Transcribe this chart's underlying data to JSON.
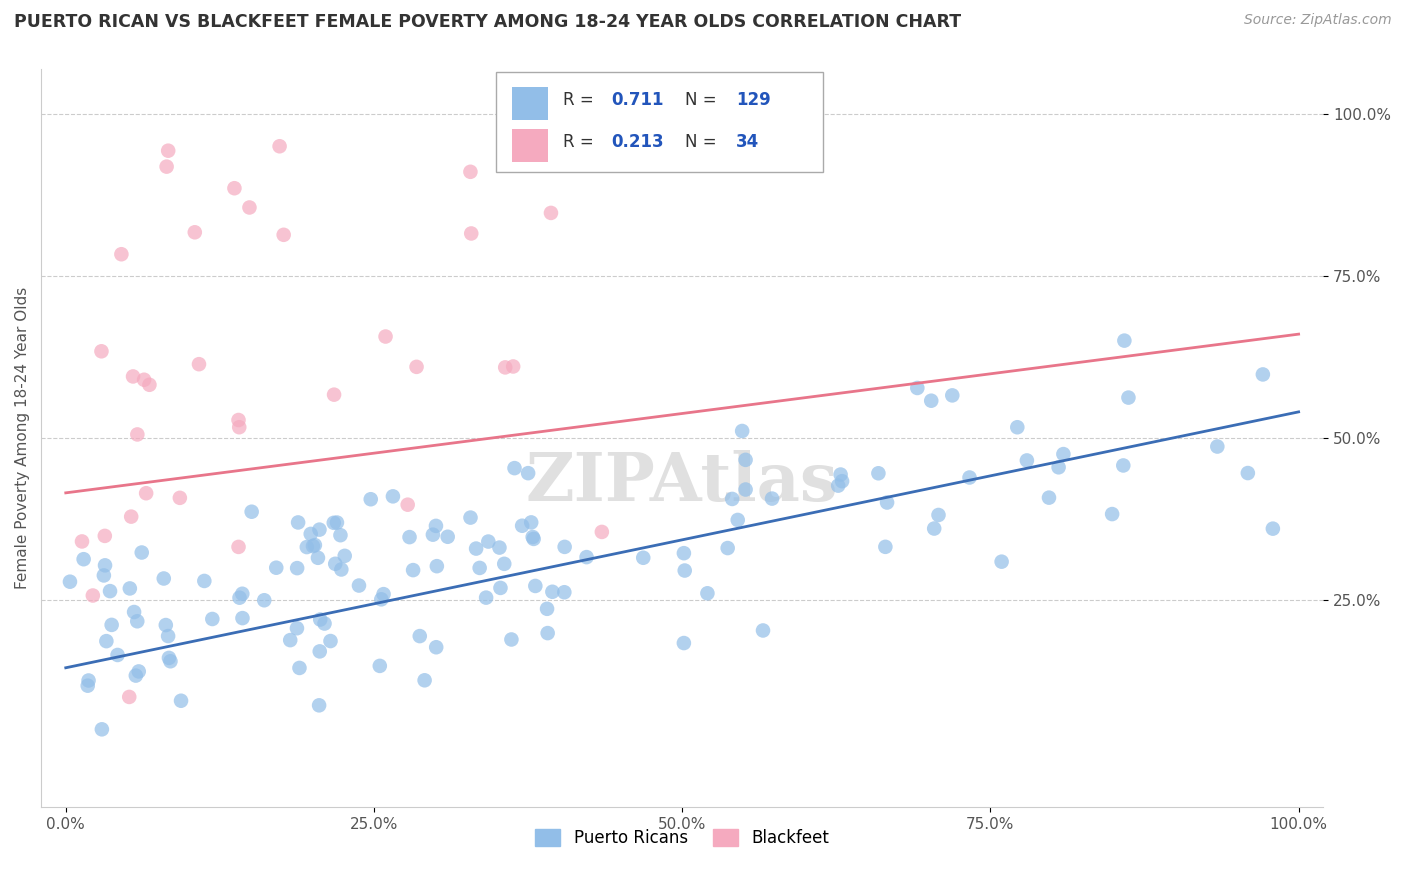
{
  "title": "PUERTO RICAN VS BLACKFEET FEMALE POVERTY AMONG 18-24 YEAR OLDS CORRELATION CHART",
  "source": "Source: ZipAtlas.com",
  "ylabel": "Female Poverty Among 18-24 Year Olds",
  "watermark": "ZIPAtlas",
  "xticks": [
    0.0,
    0.25,
    0.5,
    0.75,
    1.0
  ],
  "yticks": [
    0.25,
    0.5,
    0.75,
    1.0
  ],
  "xtick_labels": [
    "0.0%",
    "25.0%",
    "50.0%",
    "75.0%",
    "100.0%"
  ],
  "ytick_labels": [
    "25.0%",
    "50.0%",
    "75.0%",
    "100.0%"
  ],
  "blue_color": "#92BEE8",
  "pink_color": "#F5AABF",
  "blue_line_color": "#3B6DB5",
  "pink_line_color": "#E8758A",
  "legend_blue_r": "0.711",
  "legend_blue_n": "129",
  "legend_pink_r": "0.213",
  "legend_pink_n": "34",
  "value_color": "#2255BB",
  "blue_n": 129,
  "pink_n": 34,
  "title_color": "#333333",
  "source_color": "#999999",
  "watermark_color": "#E0E0E0",
  "figsize": [
    14.06,
    8.92
  ],
  "dpi": 100,
  "blue_line_start_y": 0.145,
  "blue_line_end_y": 0.54,
  "pink_line_start_y": 0.415,
  "pink_line_end_y": 0.66
}
